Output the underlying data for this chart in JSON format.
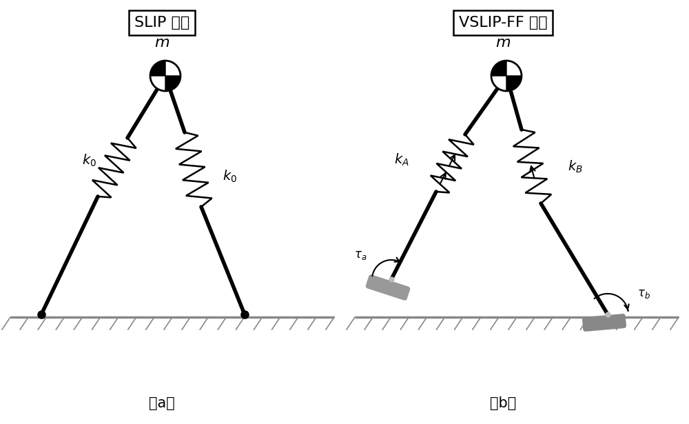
{
  "fig_width": 10.0,
  "fig_height": 6.15,
  "bg_color": "#ffffff",
  "line_color": "#000000",
  "ground_color": "#888888",
  "title_a": "SLIP 模型",
  "title_b": "VSLIP-FF 模型",
  "label_a": "（a）",
  "label_b": "（b）"
}
